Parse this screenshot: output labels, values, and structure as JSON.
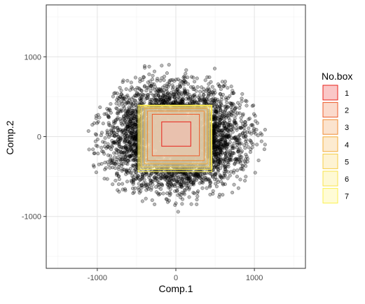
{
  "chart_data": {
    "type": "scatter",
    "xlabel": "Comp.1",
    "ylabel": "Comp.2",
    "xlim": [
      -1650,
      1650
    ],
    "ylim": [
      -1650,
      1650
    ],
    "xticks": [
      -1000,
      0,
      1000
    ],
    "yticks": [
      1000,
      0,
      -1000
    ],
    "xtick_labels": [
      "-1000",
      "0",
      "1000"
    ],
    "ytick_labels": [
      "1000",
      "0",
      "-1000"
    ],
    "grid": true,
    "point_color": "#000000",
    "points_described": "dense cloud of roughly 6000 semi-transparent points centered near (0, 0), spanning about -1150 to 1150 on Comp.1 and -900 to 1050 on Comp.2",
    "legend": {
      "title": "No.box",
      "placement": "right",
      "entries": [
        {
          "label": "1",
          "fill": "#F8B4B4",
          "stroke": "#E8201A"
        },
        {
          "label": "2",
          "fill": "#F9CDBB",
          "stroke": "#EC5A2A"
        },
        {
          "label": "3",
          "fill": "#FAD9BE",
          "stroke": "#F08A30"
        },
        {
          "label": "4",
          "fill": "#FCE4C0",
          "stroke": "#F3AE3A"
        },
        {
          "label": "5",
          "fill": "#FDEFC4",
          "stroke": "#F6CD44"
        },
        {
          "label": "6",
          "fill": "#FEF7C6",
          "stroke": "#F8E34B"
        },
        {
          "label": "7",
          "fill": "#FFFBC8",
          "stroke": "#FBF050"
        }
      ]
    },
    "boxes": [
      {
        "id": 1,
        "xmin": -180,
        "xmax": 190,
        "ymin": -120,
        "ymax": 185
      },
      {
        "id": 2,
        "xmin": -300,
        "xmax": 300,
        "ymin": -240,
        "ymax": 280
      },
      {
        "id": 3,
        "xmin": -360,
        "xmax": 360,
        "ymin": -300,
        "ymax": 320
      },
      {
        "id": 4,
        "xmin": -400,
        "xmax": 400,
        "ymin": -340,
        "ymax": 350
      },
      {
        "id": 5,
        "xmin": -440,
        "xmax": 430,
        "ymin": -380,
        "ymax": 370
      },
      {
        "id": 6,
        "xmin": -460,
        "xmax": 450,
        "ymin": -410,
        "ymax": 385
      },
      {
        "id": 7,
        "xmin": -480,
        "xmax": 460,
        "ymin": -440,
        "ymax": 395
      }
    ]
  }
}
